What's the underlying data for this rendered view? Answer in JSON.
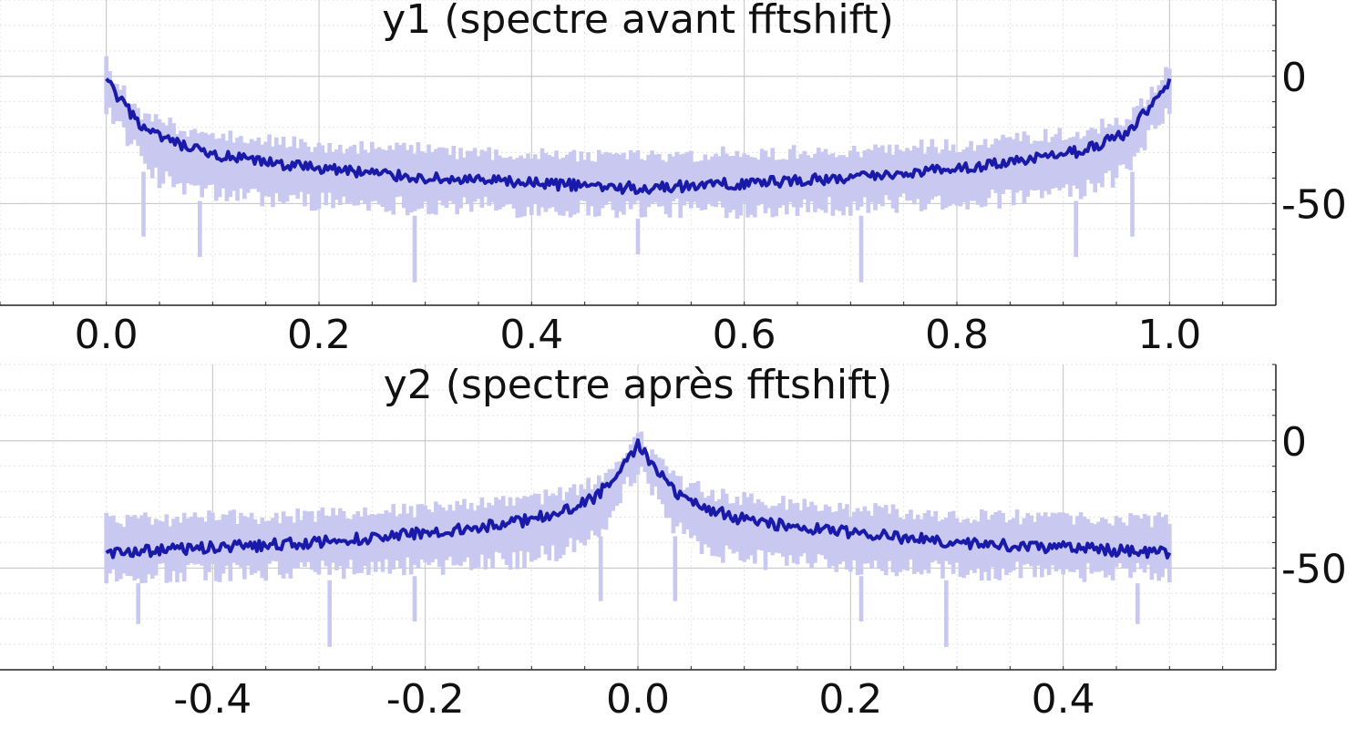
{
  "chart_data": [
    {
      "type": "line",
      "title": "y1 (spectre avant fftshift)",
      "xlabel": "",
      "ylabel": "",
      "xlim": [
        -0.1,
        1.1
      ],
      "ylim": [
        -90,
        30
      ],
      "xticks": [
        "0.0",
        "0.2",
        "0.4",
        "0.6",
        "0.8",
        "1.0"
      ],
      "xtick_values": [
        0,
        0.2,
        0.4,
        0.6,
        0.8,
        1.0
      ],
      "yticks": [
        "0",
        "-50"
      ],
      "ytick_values": [
        0,
        -50
      ],
      "grid": true,
      "y_axis_side": "right",
      "series": [
        {
          "role": "raw",
          "color": "#c8c8f0",
          "x": [
            0,
            0.01,
            0.02,
            0.03,
            0.04,
            0.05,
            0.075,
            0.1,
            0.15,
            0.2,
            0.25,
            0.3,
            0.35,
            0.4,
            0.45,
            0.5,
            0.55,
            0.6,
            0.65,
            0.7,
            0.75,
            0.8,
            0.85,
            0.9,
            0.925,
            0.95,
            0.96,
            0.97,
            0.98,
            0.99,
            1.0
          ],
          "upper": [
            8,
            0,
            -5,
            -10,
            -13,
            -15,
            -18,
            -20,
            -22,
            -24,
            -25,
            -26,
            -27,
            -27,
            -28,
            -28,
            -28,
            -27,
            -27,
            -26,
            -25,
            -24,
            -22,
            -20,
            -18,
            -15,
            -13,
            -10,
            -5,
            0,
            8
          ],
          "lower": [
            -15,
            -22,
            -28,
            -35,
            -40,
            -44,
            -48,
            -50,
            -52,
            -53,
            -54,
            -55,
            -55,
            -56,
            -56,
            -56,
            -56,
            -56,
            -55,
            -55,
            -54,
            -53,
            -52,
            -50,
            -48,
            -44,
            -40,
            -35,
            -28,
            -22,
            -15
          ],
          "spikes": [
            {
              "x": 0.035,
              "y": -63
            },
            {
              "x": 0.088,
              "y": -71
            },
            {
              "x": 0.29,
              "y": -81
            },
            {
              "x": 0.5,
              "y": -70
            },
            {
              "x": 0.71,
              "y": -81
            },
            {
              "x": 0.912,
              "y": -71
            },
            {
              "x": 0.965,
              "y": -63
            }
          ]
        },
        {
          "role": "smoothed",
          "color": "#1a1aaa",
          "x": [
            0,
            0.01,
            0.02,
            0.03,
            0.04,
            0.05,
            0.075,
            0.1,
            0.15,
            0.2,
            0.25,
            0.3,
            0.35,
            0.4,
            0.45,
            0.5,
            0.55,
            0.6,
            0.65,
            0.7,
            0.75,
            0.8,
            0.85,
            0.9,
            0.925,
            0.95,
            0.96,
            0.97,
            0.98,
            0.99,
            1.0
          ],
          "values": [
            -1,
            -8,
            -13,
            -18,
            -22,
            -24,
            -28,
            -31,
            -34,
            -36,
            -38,
            -40,
            -41,
            -42,
            -43,
            -44,
            -43,
            -42,
            -41,
            -40,
            -38,
            -36,
            -34,
            -31,
            -28,
            -24,
            -22,
            -18,
            -13,
            -8,
            -1
          ]
        }
      ]
    },
    {
      "type": "line",
      "title": "y2 (spectre après fftshift)",
      "xlabel": "",
      "ylabel": "",
      "xlim": [
        -0.6,
        0.6
      ],
      "ylim": [
        -90,
        30
      ],
      "xticks": [
        "-0.4",
        "-0.2",
        "0.0",
        "0.2",
        "0.4"
      ],
      "xtick_values": [
        -0.4,
        -0.2,
        0,
        0.2,
        0.4
      ],
      "yticks": [
        "0",
        "-50"
      ],
      "ytick_values": [
        0,
        -50
      ],
      "grid": true,
      "y_axis_side": "right",
      "series": [
        {
          "role": "raw",
          "color": "#c8c8f0",
          "x": [
            -0.5,
            -0.45,
            -0.4,
            -0.35,
            -0.3,
            -0.25,
            -0.2,
            -0.15,
            -0.1,
            -0.075,
            -0.05,
            -0.04,
            -0.03,
            -0.02,
            -0.01,
            0,
            0.01,
            0.02,
            0.03,
            0.04,
            0.05,
            0.075,
            0.1,
            0.15,
            0.2,
            0.25,
            0.3,
            0.35,
            0.4,
            0.45,
            0.5
          ],
          "upper": [
            -28,
            -28,
            -27,
            -27,
            -26,
            -25,
            -24,
            -22,
            -20,
            -18,
            -15,
            -13,
            -10,
            -5,
            0,
            8,
            0,
            -5,
            -10,
            -13,
            -15,
            -18,
            -20,
            -22,
            -24,
            -25,
            -26,
            -27,
            -27,
            -28,
            -28
          ],
          "lower": [
            -56,
            -56,
            -56,
            -55,
            -55,
            -54,
            -53,
            -52,
            -50,
            -48,
            -44,
            -40,
            -35,
            -28,
            -22,
            -15,
            -22,
            -28,
            -35,
            -40,
            -44,
            -48,
            -50,
            -52,
            -53,
            -54,
            -55,
            -55,
            -56,
            -56,
            -56
          ],
          "spikes": [
            {
              "x": -0.47,
              "y": -72
            },
            {
              "x": -0.29,
              "y": -81
            },
            {
              "x": -0.21,
              "y": -71
            },
            {
              "x": -0.035,
              "y": -63
            },
            {
              "x": 0.035,
              "y": -63
            },
            {
              "x": 0.21,
              "y": -71
            },
            {
              "x": 0.29,
              "y": -81
            },
            {
              "x": 0.47,
              "y": -72
            }
          ]
        },
        {
          "role": "smoothed",
          "color": "#1a1aaa",
          "x": [
            -0.5,
            -0.45,
            -0.4,
            -0.35,
            -0.3,
            -0.25,
            -0.2,
            -0.15,
            -0.1,
            -0.075,
            -0.05,
            -0.04,
            -0.03,
            -0.02,
            -0.01,
            0,
            0.01,
            0.02,
            0.03,
            0.04,
            0.05,
            0.075,
            0.1,
            0.15,
            0.2,
            0.25,
            0.3,
            0.35,
            0.4,
            0.45,
            0.5
          ],
          "values": [
            -44,
            -43,
            -42,
            -41,
            -40,
            -38,
            -36,
            -34,
            -31,
            -28,
            -24,
            -22,
            -18,
            -13,
            -8,
            -1,
            -8,
            -13,
            -18,
            -22,
            -24,
            -28,
            -31,
            -34,
            -36,
            -38,
            -40,
            -41,
            -42,
            -43,
            -44
          ]
        }
      ]
    }
  ]
}
